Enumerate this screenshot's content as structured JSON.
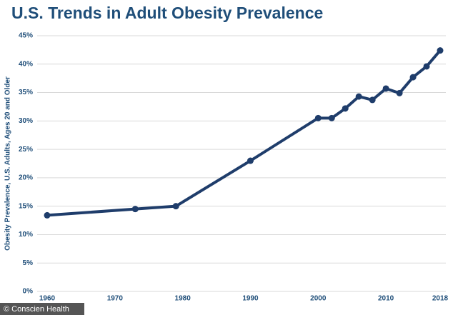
{
  "chart_data": {
    "type": "line",
    "title": "U.S. Trends in Adult Obesity Prevalence",
    "y_label": "Obesity Prevalence, U.S. Adults, Ages 20 and Older",
    "source": "© Conscien Health",
    "x": [
      1960,
      1973,
      1979,
      1990,
      2000,
      2002,
      2004,
      2006,
      2008,
      2010,
      2012,
      2014,
      2016,
      2018
    ],
    "series": [
      {
        "name": "Obesity prevalence",
        "color": "#1f3d6b",
        "values": [
          13.4,
          14.5,
          15.0,
          23.0,
          30.5,
          30.5,
          32.2,
          34.3,
          33.7,
          35.7,
          34.9,
          37.7,
          39.6,
          42.4
        ]
      }
    ],
    "xlim": [
      1960,
      2018
    ],
    "xticks": [
      1960,
      1970,
      1980,
      1990,
      2000,
      2010,
      2018
    ],
    "ylim": [
      0,
      45
    ],
    "yticks": [
      {
        "value": 0,
        "label": "0%"
      },
      {
        "value": 5,
        "label": "5%"
      },
      {
        "value": 10,
        "label": "10%"
      },
      {
        "value": 15,
        "label": "15%"
      },
      {
        "value": 20,
        "label": "20%"
      },
      {
        "value": 25,
        "label": "25%"
      },
      {
        "value": 30,
        "label": "30%"
      },
      {
        "value": 35,
        "label": "35%"
      },
      {
        "value": 40,
        "label": "40%"
      },
      {
        "value": 45,
        "label": "45%"
      }
    ],
    "grid": true
  }
}
